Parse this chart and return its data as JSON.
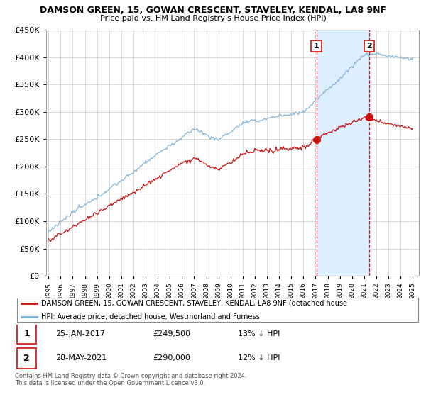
{
  "title": "DAMSON GREEN, 15, GOWAN CRESCENT, STAVELEY, KENDAL, LA8 9NF",
  "subtitle": "Price paid vs. HM Land Registry's House Price Index (HPI)",
  "legend_line1": "DAMSON GREEN, 15, GOWAN CRESCENT, STAVELEY, KENDAL, LA8 9NF (detached house",
  "legend_line2": "HPI: Average price, detached house, Westmorland and Furness",
  "footer1": "Contains HM Land Registry data © Crown copyright and database right 2024.",
  "footer2": "This data is licensed under the Open Government Licence v3.0.",
  "sale1_label": "1",
  "sale1_date": "25-JAN-2017",
  "sale1_price": "£249,500",
  "sale1_hpi": "13% ↓ HPI",
  "sale2_label": "2",
  "sale2_date": "28-MAY-2021",
  "sale2_price": "£290,000",
  "sale2_hpi": "12% ↓ HPI",
  "sale1_x": 2017.07,
  "sale1_y": 249500,
  "sale2_x": 2021.41,
  "sale2_y": 290000,
  "hpi_color": "#7bafd4",
  "price_color": "#cc1111",
  "ylim": [
    0,
    450000
  ],
  "xlim": [
    1994.8,
    2025.5
  ],
  "background_color": "#ffffff",
  "grid_color": "#cccccc",
  "shade_color": "#ddeeff"
}
